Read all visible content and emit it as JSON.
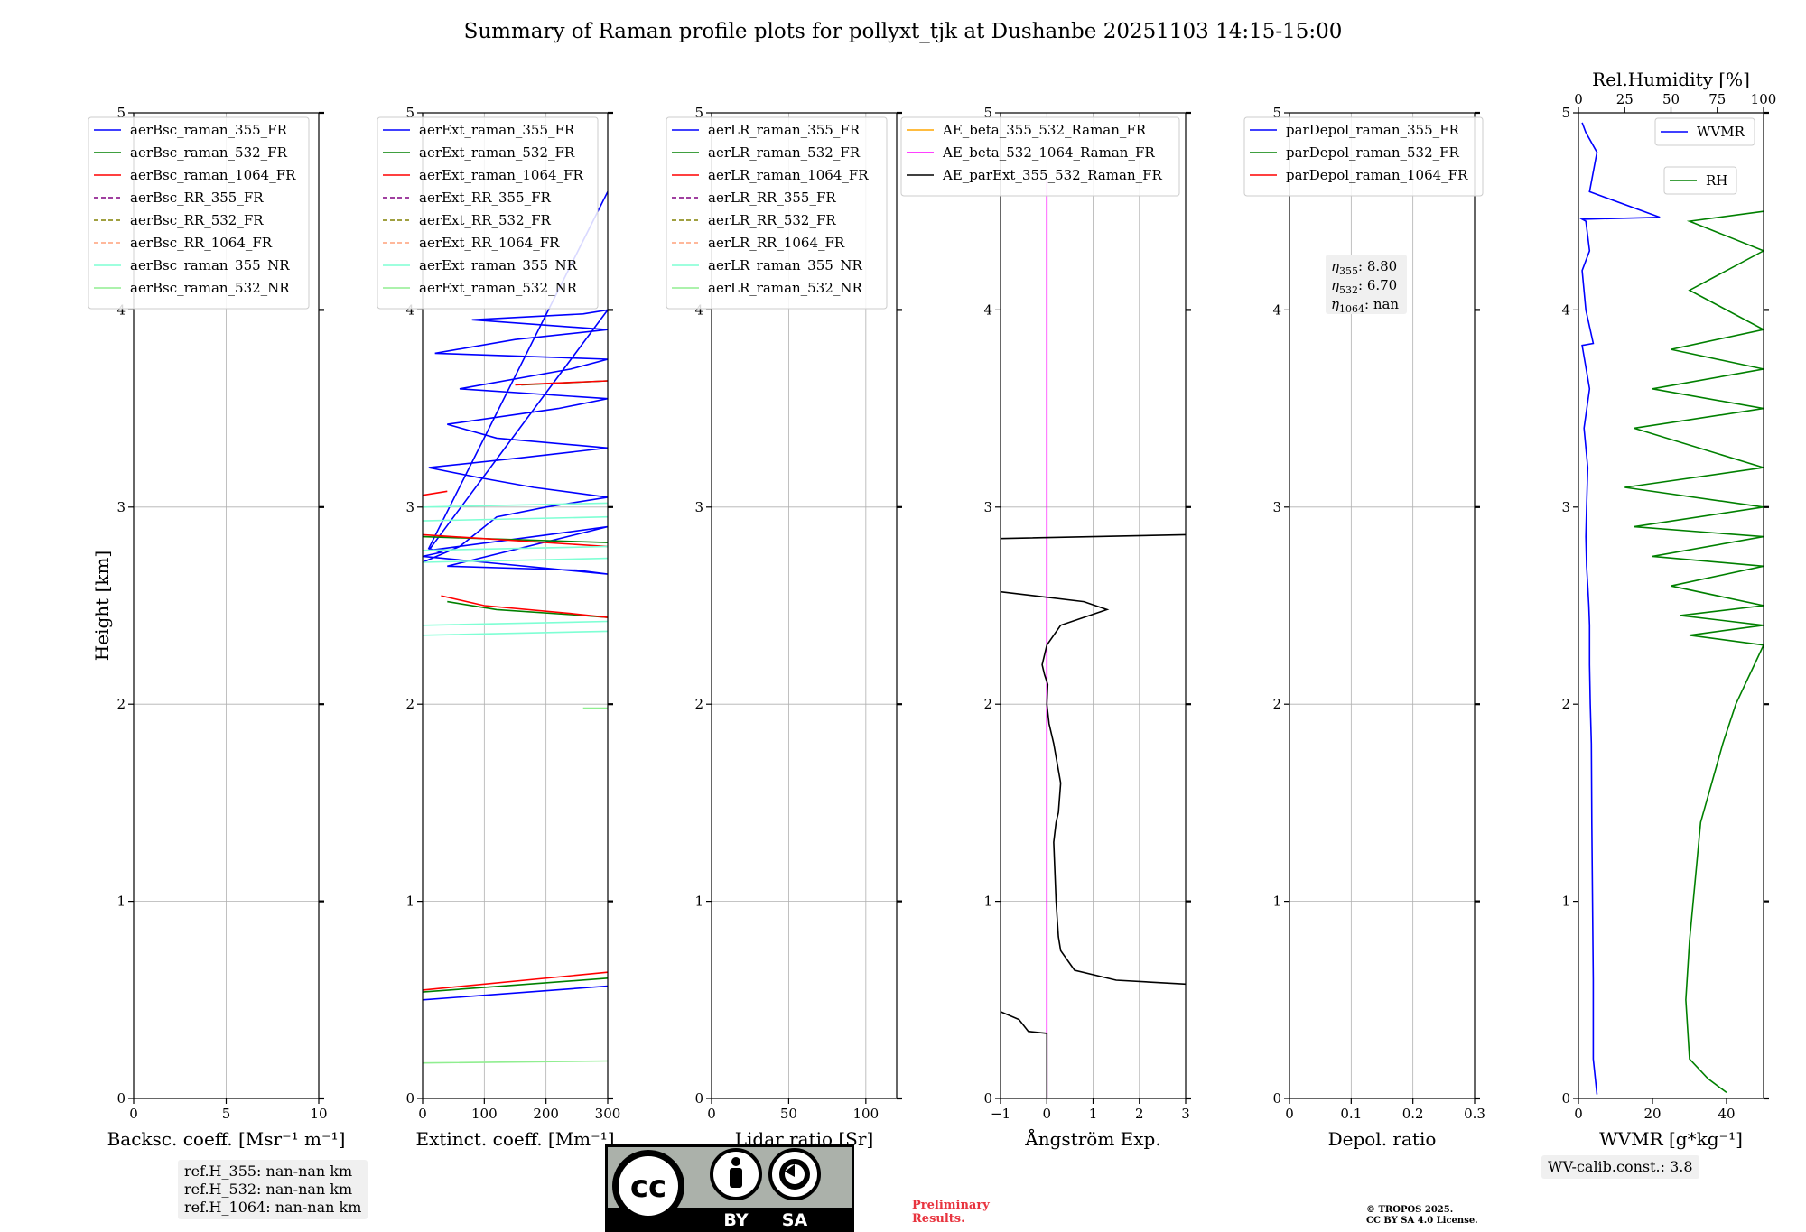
{
  "title": "Summary of Raman profile plots for pollyxt_tjk at Dushanbe 20251103 14:15-15:00",
  "colors": {
    "blue": "#0000ff",
    "green": "#008000",
    "red": "#ff0000",
    "purple": "#800080",
    "olive": "#808000",
    "salmon": "#ffa07a",
    "cyan": "#7fffd4",
    "lightgreen": "#90ee90",
    "orange": "#ffa500",
    "magenta": "#ff00ff",
    "black": "#000000"
  },
  "chart_data": [
    {
      "id": "backscatter",
      "type": "line",
      "xlabel": "Backsc. coeff. [Msr⁻¹ m⁻¹]",
      "ylabel": "Height [km]",
      "xlim": [
        0,
        10
      ],
      "ylim": [
        0,
        5
      ],
      "xticks": [
        0,
        5,
        10
      ],
      "yticks": [
        0,
        1,
        2,
        3,
        4,
        5
      ],
      "grid": true,
      "legend_position": "top",
      "series": [
        {
          "name": "aerBsc_raman_355_FR",
          "color": "blue",
          "dash": false,
          "x": [],
          "y": []
        },
        {
          "name": "aerBsc_raman_532_FR",
          "color": "green",
          "dash": false,
          "x": [],
          "y": []
        },
        {
          "name": "aerBsc_raman_1064_FR",
          "color": "red",
          "dash": false,
          "x": [],
          "y": []
        },
        {
          "name": "aerBsc_RR_355_FR",
          "color": "purple",
          "dash": true,
          "x": [],
          "y": []
        },
        {
          "name": "aerBsc_RR_532_FR",
          "color": "olive",
          "dash": true,
          "x": [],
          "y": []
        },
        {
          "name": "aerBsc_RR_1064_FR",
          "color": "salmon",
          "dash": true,
          "x": [],
          "y": []
        },
        {
          "name": "aerBsc_raman_355_NR",
          "color": "cyan",
          "dash": false,
          "x": [],
          "y": []
        },
        {
          "name": "aerBsc_raman_532_NR",
          "color": "lightgreen",
          "dash": false,
          "x": [],
          "y": []
        }
      ]
    },
    {
      "id": "extinction",
      "type": "line",
      "xlabel": "Extinct. coeff. [Mm⁻¹]",
      "xlim": [
        0,
        300
      ],
      "ylim": [
        0,
        5
      ],
      "xticks": [
        0,
        100,
        200,
        300
      ],
      "yticks": [
        0,
        1,
        2,
        3,
        4,
        5
      ],
      "grid": true,
      "legend_position": "top",
      "series": [
        {
          "name": "aerExt_raman_355_FR",
          "color": "blue",
          "dash": false,
          "x": [
            0,
            300,
            null,
            0,
            60,
            120,
            200,
            300,
            180,
            90,
            10,
            160,
            300,
            120,
            40,
            220,
            300,
            60,
            240,
            300,
            20,
            150,
            300,
            80,
            260,
            300,
            10,
            180,
            300,
            40,
            250,
            300,
            0,
            30,
            10,
            300
          ],
          "y": [
            0.5,
            0.57,
            null,
            2.72,
            2.8,
            2.95,
            3.0,
            3.05,
            3.1,
            3.15,
            3.2,
            3.25,
            3.3,
            3.35,
            3.42,
            3.5,
            3.55,
            3.6,
            3.7,
            3.75,
            3.78,
            3.85,
            3.9,
            3.95,
            3.98,
            4.0,
            2.78,
            2.85,
            2.9,
            2.7,
            2.68,
            2.66,
            2.75,
            2.77,
            2.79,
            4.6
          ]
        },
        {
          "name": "aerExt_raman_532_FR",
          "color": "green",
          "dash": false,
          "x": [
            0,
            300,
            null,
            40,
            120,
            260,
            300,
            null,
            0,
            300,
            null,
            160,
            300
          ],
          "y": [
            0.54,
            0.61,
            null,
            2.52,
            2.48,
            2.45,
            2.44,
            null,
            2.85,
            2.82,
            null,
            3.62,
            3.64
          ]
        },
        {
          "name": "aerExt_raman_1064_FR",
          "color": "red",
          "dash": false,
          "x": [
            0,
            300,
            null,
            30,
            100,
            240,
            300,
            null,
            0,
            300,
            null,
            150,
            300,
            null,
            0,
            40
          ],
          "y": [
            0.55,
            0.64,
            null,
            2.55,
            2.5,
            2.46,
            2.44,
            null,
            2.86,
            2.8,
            null,
            3.62,
            3.64,
            null,
            3.06,
            3.08
          ]
        },
        {
          "name": "aerExt_RR_355_FR",
          "color": "purple",
          "dash": true,
          "x": [],
          "y": []
        },
        {
          "name": "aerExt_RR_532_FR",
          "color": "olive",
          "dash": true,
          "x": [],
          "y": []
        },
        {
          "name": "aerExt_RR_1064_FR",
          "color": "salmon",
          "dash": true,
          "x": [],
          "y": []
        },
        {
          "name": "aerExt_raman_355_NR",
          "color": "cyan",
          "dash": false,
          "x": [
            0,
            300,
            null,
            0,
            300,
            null,
            0,
            300,
            null,
            0,
            300,
            null,
            0,
            300,
            null,
            0,
            300
          ],
          "y": [
            2.35,
            2.37,
            null,
            2.4,
            2.42,
            null,
            2.78,
            2.8,
            null,
            2.93,
            2.95,
            null,
            3.0,
            3.02,
            null,
            2.72,
            2.74
          ]
        },
        {
          "name": "aerExt_raman_532_NR",
          "color": "lightgreen",
          "dash": false,
          "x": [
            0,
            300,
            null,
            260,
            300
          ],
          "y": [
            0.18,
            0.19,
            null,
            1.98,
            1.98
          ]
        }
      ]
    },
    {
      "id": "lidar_ratio",
      "type": "line",
      "xlabel": "Lidar ratio [Sr]",
      "xlim": [
        0,
        120
      ],
      "ylim": [
        0,
        5
      ],
      "xticks": [
        0,
        50,
        100
      ],
      "yticks": [
        0,
        1,
        2,
        3,
        4,
        5
      ],
      "grid": true,
      "legend_position": "top",
      "series": [
        {
          "name": "aerLR_raman_355_FR",
          "color": "blue",
          "dash": false,
          "x": [],
          "y": []
        },
        {
          "name": "aerLR_raman_532_FR",
          "color": "green",
          "dash": false,
          "x": [],
          "y": []
        },
        {
          "name": "aerLR_raman_1064_FR",
          "color": "red",
          "dash": false,
          "x": [],
          "y": []
        },
        {
          "name": "aerLR_RR_355_FR",
          "color": "purple",
          "dash": true,
          "x": [],
          "y": []
        },
        {
          "name": "aerLR_RR_532_FR",
          "color": "olive",
          "dash": true,
          "x": [],
          "y": []
        },
        {
          "name": "aerLR_RR_1064_FR",
          "color": "salmon",
          "dash": true,
          "x": [],
          "y": []
        },
        {
          "name": "aerLR_raman_355_NR",
          "color": "cyan",
          "dash": false,
          "x": [],
          "y": []
        },
        {
          "name": "aerLR_raman_532_NR",
          "color": "lightgreen",
          "dash": false,
          "x": [],
          "y": []
        }
      ]
    },
    {
      "id": "angstrom",
      "type": "line",
      "xlabel": "Ångström Exp.",
      "xlim": [
        -1,
        3
      ],
      "ylim": [
        0,
        5
      ],
      "xticks": [
        -1,
        0,
        1,
        2,
        3
      ],
      "yticks": [
        0,
        1,
        2,
        3,
        4,
        5
      ],
      "grid": true,
      "legend_position": "top",
      "series": [
        {
          "name": "AE_beta_355_532_Raman_FR",
          "color": "orange",
          "dash": false,
          "x": [],
          "y": []
        },
        {
          "name": "AE_beta_532_1064_Raman_FR",
          "color": "magenta",
          "dash": false,
          "x": [
            0,
            0
          ],
          "y": [
            0,
            4.65
          ]
        },
        {
          "name": "AE_parExt_355_532_Raman_FR",
          "color": "black",
          "dash": false,
          "x": [
            0.0,
            0.0,
            -0.4,
            -0.6,
            -1.0,
            null,
            3.0,
            1.5,
            0.6,
            0.3,
            0.25,
            0.2,
            0.15,
            0.2,
            0.25,
            0.3,
            0.15,
            0.05,
            0.0,
            0.02,
            -0.05,
            -0.1,
            0.0,
            0.3,
            1.3,
            0.8,
            -1.0,
            null,
            -1.0,
            3.0
          ],
          "y": [
            0.0,
            0.33,
            0.34,
            0.4,
            0.44,
            null,
            0.58,
            0.6,
            0.65,
            0.75,
            0.82,
            1.0,
            1.3,
            1.4,
            1.45,
            1.6,
            1.8,
            1.9,
            2.0,
            2.1,
            2.15,
            2.2,
            2.3,
            2.4,
            2.48,
            2.52,
            2.57,
            null,
            2.84,
            2.86
          ]
        }
      ]
    },
    {
      "id": "depol",
      "type": "line",
      "xlabel": "Depol. ratio",
      "xlim": [
        0,
        0.3
      ],
      "ylim": [
        0,
        5
      ],
      "xticks": [
        0.0,
        0.1,
        0.2,
        0.3
      ],
      "yticks": [
        0,
        1,
        2,
        3,
        4,
        5
      ],
      "grid": true,
      "legend_position": "top",
      "series": [
        {
          "name": "parDepol_raman_355_FR",
          "color": "blue",
          "dash": false,
          "x": [],
          "y": []
        },
        {
          "name": "parDepol_raman_532_FR",
          "color": "green",
          "dash": false,
          "x": [],
          "y": []
        },
        {
          "name": "parDepol_raman_1064_FR",
          "color": "red",
          "dash": false,
          "x": [],
          "y": []
        }
      ],
      "eta": [
        {
          "sub": "355",
          "value": "8.80"
        },
        {
          "sub": "532",
          "value": "6.70"
        },
        {
          "sub": "1064",
          "value": "nan"
        }
      ]
    },
    {
      "id": "wvmr",
      "type": "line",
      "xlabel": "WVMR [g*kg⁻¹]",
      "xlim": [
        0,
        50
      ],
      "ylim": [
        0,
        5
      ],
      "xticks": [
        0,
        20,
        40
      ],
      "yticks": [
        0,
        1,
        2,
        3,
        4,
        5
      ],
      "grid": false,
      "top_axis": {
        "label": "Rel.Humidity [%]",
        "lim": [
          0,
          100
        ],
        "ticks": [
          0,
          25,
          50,
          75,
          100
        ]
      },
      "series": [
        {
          "name": "WVMR",
          "color": "blue",
          "dash": false,
          "x": [
            5,
            4,
            4,
            3.8,
            3.6,
            3.5,
            3.2,
            3.0,
            3.0,
            2.8,
            2.5,
            2.2,
            2.0,
            2.2,
            2.5,
            1.5,
            3.0,
            1.0,
            4.0,
            2.0,
            1.0,
            3.0,
            2.0,
            1.0,
            22,
            3,
            5,
            2,
            1
          ],
          "y": [
            0.02,
            0.2,
            0.6,
            1.0,
            1.4,
            1.8,
            2.0,
            2.2,
            2.4,
            2.5,
            2.6,
            2.7,
            2.85,
            3.0,
            3.2,
            3.4,
            3.6,
            3.82,
            3.83,
            4.0,
            4.2,
            4.3,
            4.45,
            4.46,
            4.47,
            4.6,
            4.8,
            4.9,
            4.95
          ]
        },
        {
          "name": "RH",
          "color": "green",
          "dash": false,
          "axis": "top",
          "x": [
            80,
            70,
            60,
            58,
            60,
            62,
            64,
            66,
            72,
            78,
            85,
            90,
            95,
            100,
            60,
            100,
            55,
            100,
            50,
            100,
            40,
            100,
            30,
            100,
            25,
            100,
            30,
            100,
            40,
            100,
            50,
            100,
            60,
            100,
            60,
            100
          ],
          "y": [
            0.03,
            0.1,
            0.2,
            0.5,
            0.8,
            1.0,
            1.2,
            1.4,
            1.6,
            1.8,
            2.0,
            2.1,
            2.2,
            2.3,
            2.35,
            2.4,
            2.45,
            2.5,
            2.6,
            2.7,
            2.75,
            2.85,
            2.9,
            3.0,
            3.1,
            3.2,
            3.4,
            3.5,
            3.6,
            3.7,
            3.8,
            3.9,
            4.1,
            4.3,
            4.45,
            4.5
          ]
        }
      ],
      "legend": [
        "WVMR",
        "RH"
      ]
    }
  ],
  "ref_heights": [
    "ref.H_355: nan-nan km",
    "ref.H_532: nan-nan km",
    "ref.H_1064: nan-nan km"
  ],
  "wv_calib": "WV-calib.const.: 3.8",
  "preliminary": [
    "Preliminary",
    "Results."
  ],
  "copyright": [
    "© TROPOS 2025.",
    "CC BY SA 4.0 License."
  ],
  "license_badge": {
    "by": "BY",
    "sa": "SA"
  }
}
